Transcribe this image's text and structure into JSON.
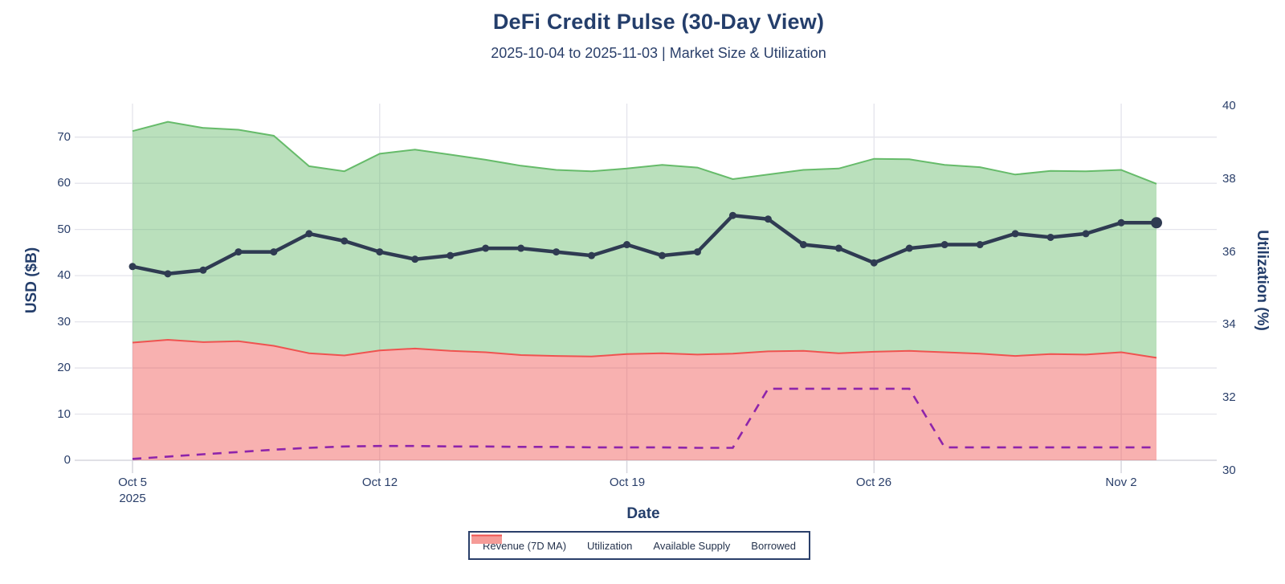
{
  "header": {
    "title": "DeFi Credit Pulse (30-Day View)",
    "subtitle": "2025-10-04 to 2025-11-03 | Market Size & Utilization"
  },
  "colors": {
    "text_navy": "#243e6b",
    "tick_navy": "#2a3f6a",
    "gridline": "#e4e4ec",
    "axis_line": "#d6d6de",
    "available_supply_line": "#66bb6a",
    "available_supply_fill": "rgba(102,187,106,0.45)",
    "borrowed_line": "#ef5350",
    "borrowed_fill": "rgba(239,83,80,0.45)",
    "utilization_line": "#2f3b52",
    "revenue_line": "#8e24aa",
    "legend_border": "#2a3f6a",
    "background": "#ffffff"
  },
  "chart_data": {
    "type": "area",
    "title": "DeFi Credit Pulse (30-Day View)",
    "subtitle": "2025-10-04 to 2025-11-03 | Market Size & Utilization",
    "grid": true,
    "dates": [
      "Oct 5",
      "Oct 6",
      "Oct 7",
      "Oct 8",
      "Oct 9",
      "Oct 10",
      "Oct 11",
      "Oct 12",
      "Oct 13",
      "Oct 14",
      "Oct 15",
      "Oct 16",
      "Oct 17",
      "Oct 18",
      "Oct 19",
      "Oct 20",
      "Oct 21",
      "Oct 22",
      "Oct 23",
      "Oct 24",
      "Oct 25",
      "Oct 26",
      "Oct 27",
      "Oct 28",
      "Oct 29",
      "Oct 30",
      "Oct 31",
      "Nov 1",
      "Nov 2",
      "Nov 3"
    ],
    "series": [
      {
        "name": "Borrowed",
        "type": "area-stacked",
        "axis": "left",
        "stack_order": 1,
        "values": [
          25.5,
          26.1,
          25.6,
          25.8,
          24.8,
          23.2,
          22.7,
          23.8,
          24.2,
          23.7,
          23.4,
          22.8,
          22.6,
          22.5,
          23.0,
          23.2,
          22.9,
          23.1,
          23.6,
          23.7,
          23.2,
          23.5,
          23.7,
          23.4,
          23.1,
          22.6,
          23.0,
          22.9,
          23.4,
          22.2
        ]
      },
      {
        "name": "Available Supply",
        "type": "area-stacked",
        "axis": "left",
        "stack_order": 2,
        "values": [
          45.8,
          47.2,
          46.4,
          45.8,
          45.5,
          40.5,
          39.9,
          42.6,
          43.1,
          42.5,
          41.7,
          41.0,
          40.3,
          40.1,
          40.2,
          40.8,
          40.5,
          37.8,
          38.3,
          39.2,
          40.0,
          41.8,
          41.5,
          40.6,
          40.4,
          39.3,
          39.7,
          39.7,
          39.5,
          37.7
        ]
      },
      {
        "name": "Revenue (7D MA)",
        "type": "dashed-line",
        "axis": "left",
        "values": [
          0.3,
          0.8,
          1.3,
          1.8,
          2.3,
          2.7,
          3.0,
          3.1,
          3.1,
          3.0,
          3.0,
          2.9,
          2.9,
          2.8,
          2.8,
          2.8,
          2.7,
          2.7,
          15.5,
          15.5,
          15.5,
          15.5,
          15.5,
          2.8,
          2.8,
          2.8,
          2.8,
          2.8,
          2.8,
          2.8
        ]
      },
      {
        "name": "Utilization",
        "type": "line-markers",
        "axis": "right",
        "values": [
          35.6,
          35.4,
          35.5,
          36.0,
          36.0,
          36.5,
          36.3,
          36.0,
          35.8,
          35.9,
          36.1,
          36.1,
          36.0,
          35.9,
          36.2,
          35.9,
          36.0,
          37.0,
          36.9,
          36.2,
          36.1,
          35.7,
          36.1,
          36.2,
          36.2,
          36.5,
          36.4,
          36.5,
          36.8,
          36.8
        ]
      }
    ],
    "left_axis": {
      "title": "USD ($B)",
      "ticks": [
        0,
        10,
        20,
        30,
        40,
        50,
        60,
        70
      ],
      "range": [
        0,
        77.2
      ]
    },
    "right_axis": {
      "title": "Utilization (%)",
      "ticks": [
        30,
        32,
        34,
        36,
        38,
        40
      ],
      "range": [
        30,
        40.1
      ]
    },
    "x_axis": {
      "title": "Date",
      "tick_labels": [
        "Oct 5",
        "Oct 12",
        "Oct 19",
        "Oct 26",
        "Nov 2"
      ],
      "tick_indices": [
        0,
        7,
        14,
        21,
        28
      ],
      "first_tick_sublabel": "2025"
    },
    "legend": [
      {
        "label": "Revenue (7D MA)",
        "swatch": "dash"
      },
      {
        "label": "Utilization",
        "swatch": "line-marker"
      },
      {
        "label": "Available Supply",
        "swatch": "area-green"
      },
      {
        "label": "Borrowed",
        "swatch": "area-red"
      }
    ],
    "legend_position": "bottom-center"
  }
}
